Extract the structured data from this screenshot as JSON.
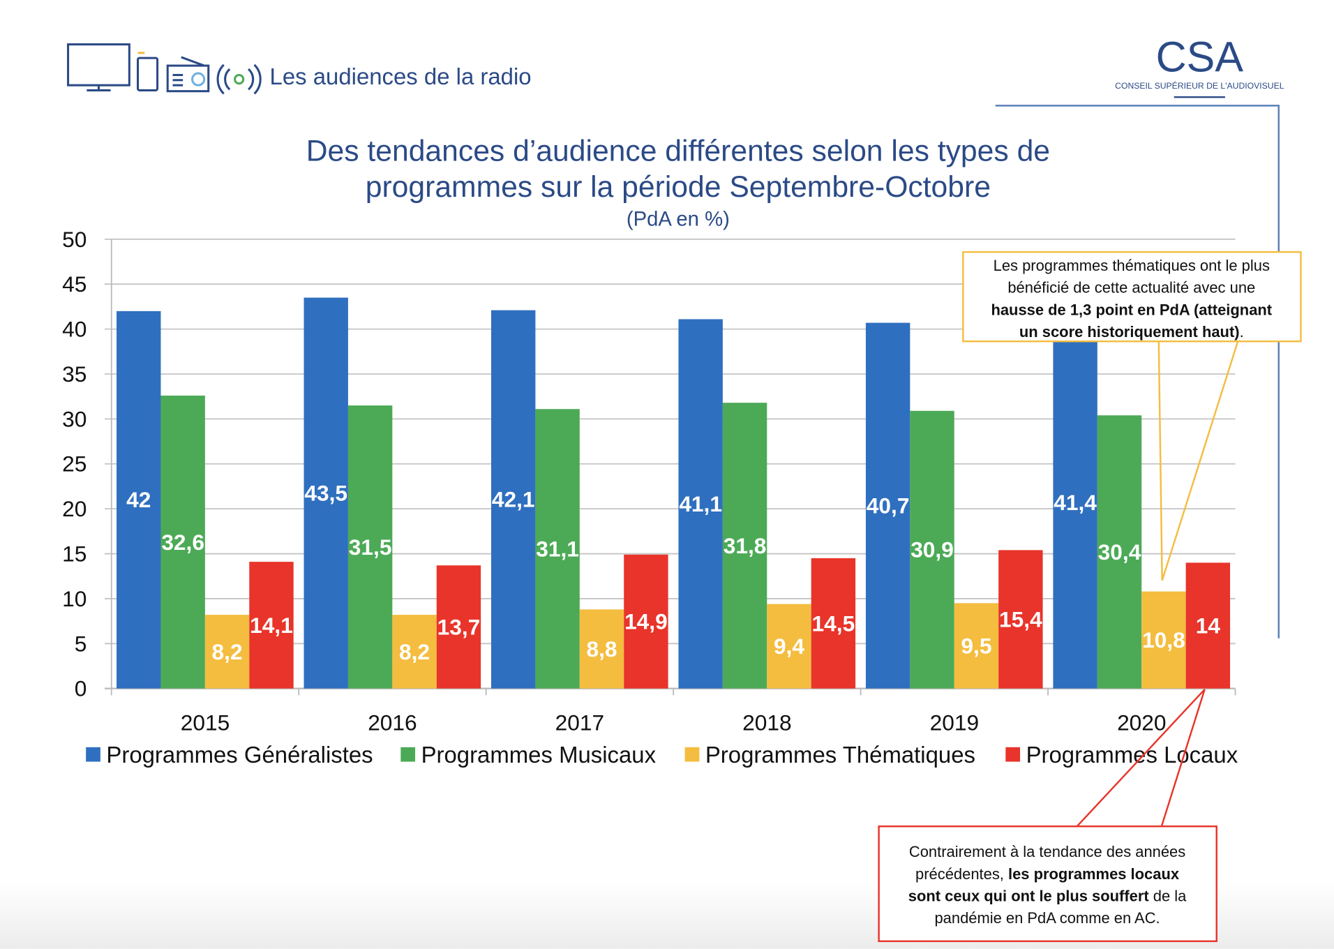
{
  "header": {
    "section_title": "Les audiences de la radio",
    "logo_text": "CSA",
    "logo_subtitle": "CONSEIL SUPÉRIEUR DE L'AUDIOVISUEL"
  },
  "colors": {
    "title": "#2b4a86",
    "generalistes": "#2f6fbf",
    "musicaux": "#4caa56",
    "thematiques": "#f4bd40",
    "locaux": "#e8342a"
  },
  "chart_data": {
    "type": "bar",
    "title_line1": "Des tendances d’audience différentes selon les types de",
    "title_line2": "programmes sur la période Septembre-Octobre",
    "subtitle": "(PdA en %)",
    "categories": [
      "2015",
      "2016",
      "2017",
      "2018",
      "2019",
      "2020"
    ],
    "ylim": [
      0,
      50
    ],
    "yticks": [
      "0",
      "5",
      "10",
      "15",
      "20",
      "25",
      "30",
      "35",
      "40",
      "45",
      "50"
    ],
    "grid": true,
    "legend_position": "bottom",
    "series": [
      {
        "name": "Programmes Généralistes",
        "values": [
          42,
          43.5,
          42.1,
          41.1,
          40.7,
          41.4
        ],
        "labels": [
          "42",
          "43,5",
          "42,1",
          "41,1",
          "40,7",
          "41,4"
        ]
      },
      {
        "name": "Programmes Musicaux",
        "values": [
          32.6,
          31.5,
          31.1,
          31.8,
          30.9,
          30.4
        ],
        "labels": [
          "32,6",
          "31,5",
          "31,1",
          "31,8",
          "30,9",
          "30,4"
        ]
      },
      {
        "name": "Programmes Thématiques",
        "values": [
          8.2,
          8.2,
          8.8,
          9.4,
          9.5,
          10.8
        ],
        "labels": [
          "8,2",
          "8,2",
          "8,8",
          "9,4",
          "9,5",
          "10,8"
        ]
      },
      {
        "name": "Programmes Locaux",
        "values": [
          14.1,
          13.7,
          14.9,
          14.5,
          15.4,
          14
        ],
        "labels": [
          "14,1",
          "13,7",
          "14,9",
          "14,5",
          "15,4",
          "14"
        ]
      }
    ]
  },
  "callouts": {
    "thematiques": {
      "line1": "Les programmes thématiques ont le plus",
      "line2": "bénéficié de cette actualité avec une",
      "line3_bold": "hausse de 1,3 point en PdA (atteignant",
      "line4_bold": "un score historiquement haut)",
      "line4_end": "."
    },
    "locaux": {
      "line1": "Contrairement à la tendance des années",
      "line2_start": "précédentes, ",
      "line2_bold": "les programmes locaux",
      "line3_bold": "sont ceux qui ont le plus souffert",
      "line3_end": " de la",
      "line4": "pandémie en PdA comme en AC."
    }
  }
}
